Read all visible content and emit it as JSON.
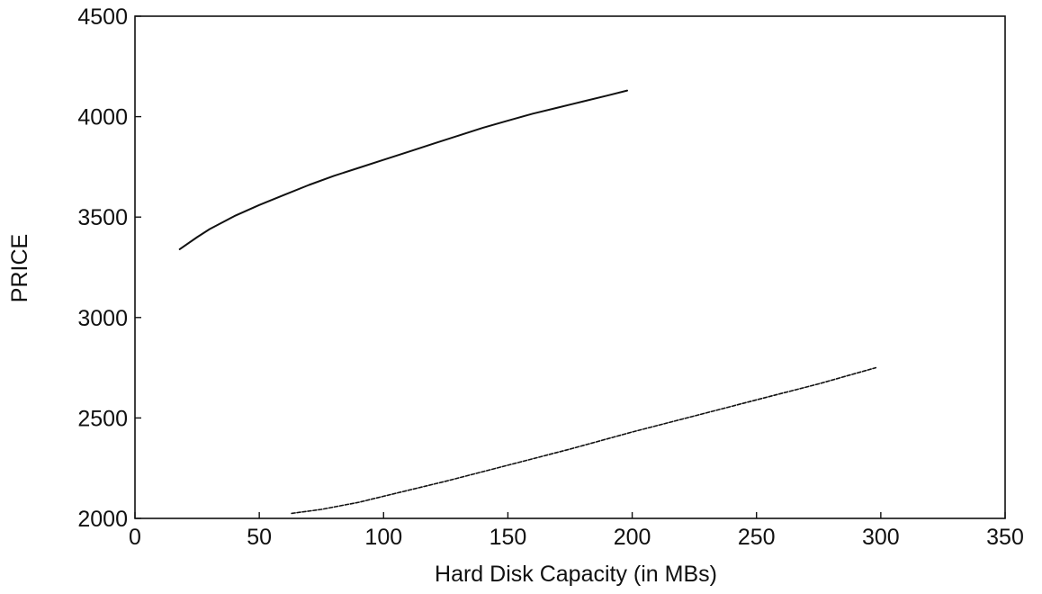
{
  "chart_data": {
    "type": "line",
    "title": "",
    "xlabel": "Hard Disk Capacity (in MBs)",
    "ylabel": "PRICE",
    "xlim": [
      0,
      350
    ],
    "ylim": [
      2000,
      4500
    ],
    "xticks": [
      "0",
      "50",
      "100",
      "150",
      "200",
      "250",
      "300",
      "350"
    ],
    "yticks": [
      "2000",
      "2500",
      "3000",
      "3500",
      "4000",
      "4500"
    ],
    "grid": false,
    "legend": "none",
    "series": [
      {
        "style": "solid",
        "color": "#111111",
        "x": [
          18,
          25,
          30,
          40,
          50,
          60,
          70,
          80,
          90,
          100,
          110,
          120,
          130,
          140,
          150,
          160,
          170,
          180,
          190,
          198
        ],
        "y": [
          3340,
          3400,
          3440,
          3505,
          3560,
          3610,
          3660,
          3705,
          3745,
          3785,
          3825,
          3865,
          3905,
          3945,
          3980,
          4015,
          4045,
          4075,
          4105,
          4130
        ]
      },
      {
        "style": "dashed",
        "color": "#111111",
        "x": [
          63,
          75,
          90,
          100,
          125,
          150,
          175,
          200,
          225,
          250,
          275,
          298
        ],
        "y": [
          2025,
          2045,
          2080,
          2110,
          2185,
          2265,
          2345,
          2430,
          2510,
          2590,
          2670,
          2750
        ]
      }
    ]
  }
}
